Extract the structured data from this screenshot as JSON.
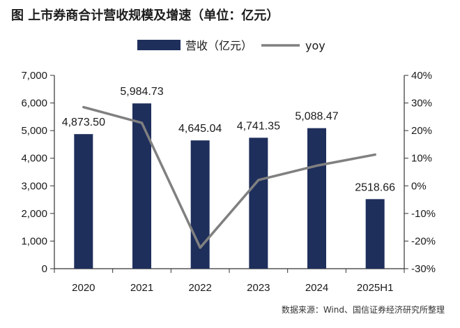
{
  "title": "图  上市券商合计营收规模及增速（单位：亿元）",
  "source": "数据来源：Wind、国信证券经济研究所整理",
  "colors": {
    "bar": "#1f2f5c",
    "line": "#808080",
    "axis": "#333333"
  },
  "chart_data": {
    "type": "bar",
    "categories": [
      "2020",
      "2021",
      "2022",
      "2023",
      "2024",
      "2025H1"
    ],
    "series": [
      {
        "name": "营收（亿元）",
        "type": "bar",
        "axis": "left",
        "values": [
          4873.5,
          5984.73,
          4645.04,
          4741.35,
          5088.47,
          2518.66
        ],
        "labels": [
          "4,873.50",
          "5,984.73",
          "4,645.04",
          "4,741.35",
          "5,088.47",
          "2518.66"
        ]
      },
      {
        "name": "yoy",
        "type": "line",
        "axis": "right",
        "values": [
          28.5,
          22.8,
          -22.4,
          2.1,
          7.3,
          11.3
        ]
      }
    ],
    "y_left": {
      "lim": [
        0,
        7000
      ],
      "ticks": [
        0,
        1000,
        2000,
        3000,
        4000,
        5000,
        6000,
        7000
      ],
      "tick_labels": [
        "0",
        "1,000",
        "2,000",
        "3,000",
        "4,000",
        "5,000",
        "6,000",
        "7,000"
      ]
    },
    "y_right": {
      "lim": [
        -30,
        40
      ],
      "ticks": [
        -30,
        -20,
        -10,
        0,
        10,
        20,
        30,
        40
      ],
      "tick_labels": [
        "-30%",
        "-20%",
        "-10%",
        "0%",
        "10%",
        "20%",
        "30%",
        "40%"
      ]
    },
    "grid": false,
    "legend_position": "top-center"
  }
}
